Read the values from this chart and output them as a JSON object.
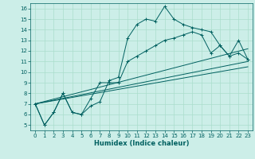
{
  "xlabel": "Humidex (Indice chaleur)",
  "bg_color": "#cceee8",
  "line_color": "#006060",
  "grid_color": "#aaddcc",
  "xlim": [
    -0.5,
    23.5
  ],
  "ylim": [
    4.5,
    16.5
  ],
  "xticks": [
    0,
    1,
    2,
    3,
    4,
    5,
    6,
    7,
    8,
    9,
    10,
    11,
    12,
    13,
    14,
    15,
    16,
    17,
    18,
    19,
    20,
    21,
    22,
    23
  ],
  "yticks": [
    5,
    6,
    7,
    8,
    9,
    10,
    11,
    12,
    13,
    14,
    15,
    16
  ],
  "series1_x": [
    0,
    1,
    2,
    3,
    4,
    5,
    6,
    7,
    8,
    9,
    10,
    11,
    12,
    13,
    14,
    15,
    16,
    17,
    18,
    19,
    20,
    21,
    22,
    23
  ],
  "series1_y": [
    7.0,
    5.0,
    6.2,
    8.0,
    6.2,
    6.0,
    6.8,
    7.2,
    9.2,
    9.5,
    13.2,
    14.5,
    15.0,
    14.8,
    16.2,
    15.0,
    14.5,
    14.2,
    14.0,
    13.8,
    12.5,
    11.5,
    13.0,
    11.2
  ],
  "series2_x": [
    0,
    1,
    2,
    3,
    4,
    5,
    6,
    7,
    8,
    9,
    10,
    11,
    12,
    13,
    14,
    15,
    16,
    17,
    18,
    19,
    20,
    21,
    22,
    23
  ],
  "series2_y": [
    7.0,
    5.0,
    6.2,
    8.0,
    6.2,
    6.0,
    7.5,
    9.0,
    9.0,
    9.0,
    11.0,
    11.5,
    12.0,
    12.5,
    13.0,
    13.2,
    13.5,
    13.8,
    13.5,
    11.8,
    12.5,
    11.5,
    11.8,
    11.2
  ],
  "trend1_x": [
    0,
    23
  ],
  "trend1_y": [
    7.0,
    11.0
  ],
  "trend2_x": [
    0,
    23
  ],
  "trend2_y": [
    7.0,
    12.2
  ],
  "trend3_x": [
    0,
    23
  ],
  "trend3_y": [
    7.0,
    10.5
  ],
  "marker": "+",
  "markersize": 3,
  "linewidth": 0.7,
  "tick_fontsize": 5,
  "xlabel_fontsize": 6
}
